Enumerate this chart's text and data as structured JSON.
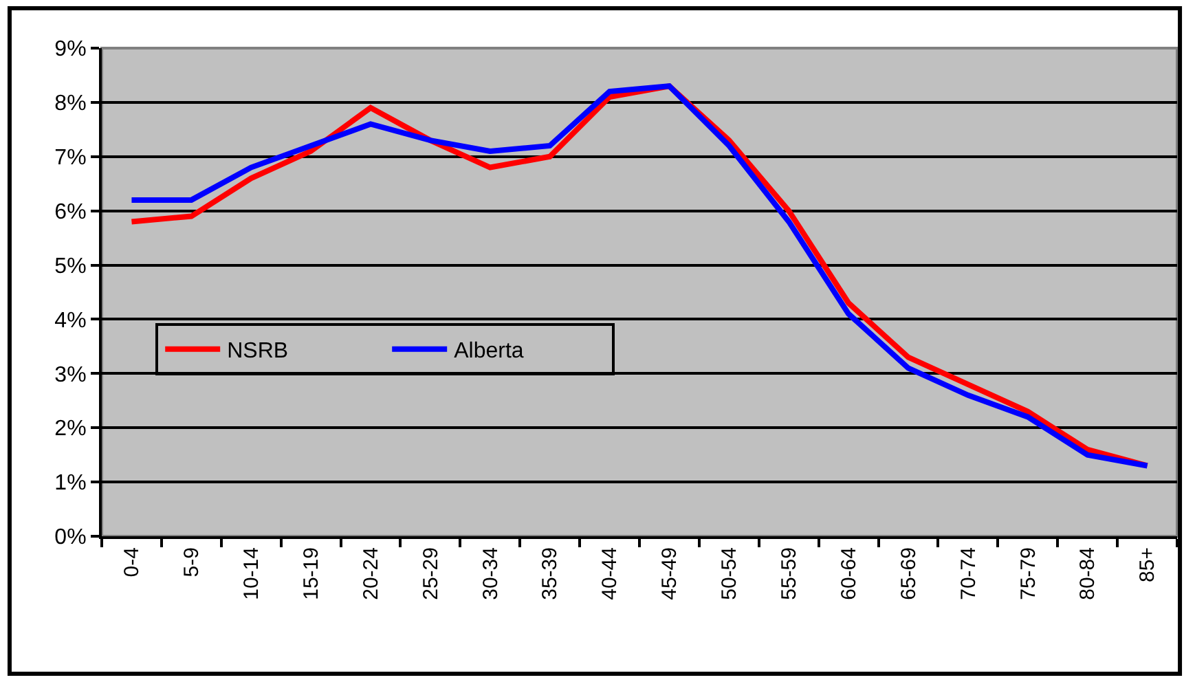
{
  "chart_data": {
    "type": "line",
    "categories": [
      "0-4",
      "5-9",
      "10-14",
      "15-19",
      "20-24",
      "25-29",
      "30-34",
      "35-39",
      "40-44",
      "45-49",
      "50-54",
      "55-59",
      "60-64",
      "65-69",
      "70-74",
      "75-79",
      "80-84",
      "85+"
    ],
    "series": [
      {
        "name": "NSRB",
        "color": "#ff0000",
        "values": [
          5.8,
          5.9,
          6.6,
          7.1,
          7.9,
          7.3,
          6.8,
          7.0,
          8.1,
          8.3,
          7.3,
          6.0,
          4.3,
          3.3,
          2.8,
          2.3,
          1.6,
          1.3
        ]
      },
      {
        "name": "Alberta",
        "color": "#0000ff",
        "values": [
          6.2,
          6.2,
          6.8,
          7.2,
          7.6,
          7.3,
          7.1,
          7.2,
          8.2,
          8.3,
          7.2,
          5.8,
          4.1,
          3.1,
          2.6,
          2.2,
          1.5,
          1.3
        ]
      }
    ],
    "ylim": [
      0,
      9
    ],
    "yticks": [
      {
        "value": 0,
        "label": "0%"
      },
      {
        "value": 1,
        "label": "1%"
      },
      {
        "value": 2,
        "label": "2%"
      },
      {
        "value": 3,
        "label": "3%"
      },
      {
        "value": 4,
        "label": "4%"
      },
      {
        "value": 5,
        "label": "5%"
      },
      {
        "value": 6,
        "label": "6%"
      },
      {
        "value": 7,
        "label": "7%"
      },
      {
        "value": 8,
        "label": "8%"
      },
      {
        "value": 9,
        "label": "9%"
      }
    ],
    "grid": "y",
    "legend": "left",
    "marker": "none",
    "line_style": "solid"
  }
}
